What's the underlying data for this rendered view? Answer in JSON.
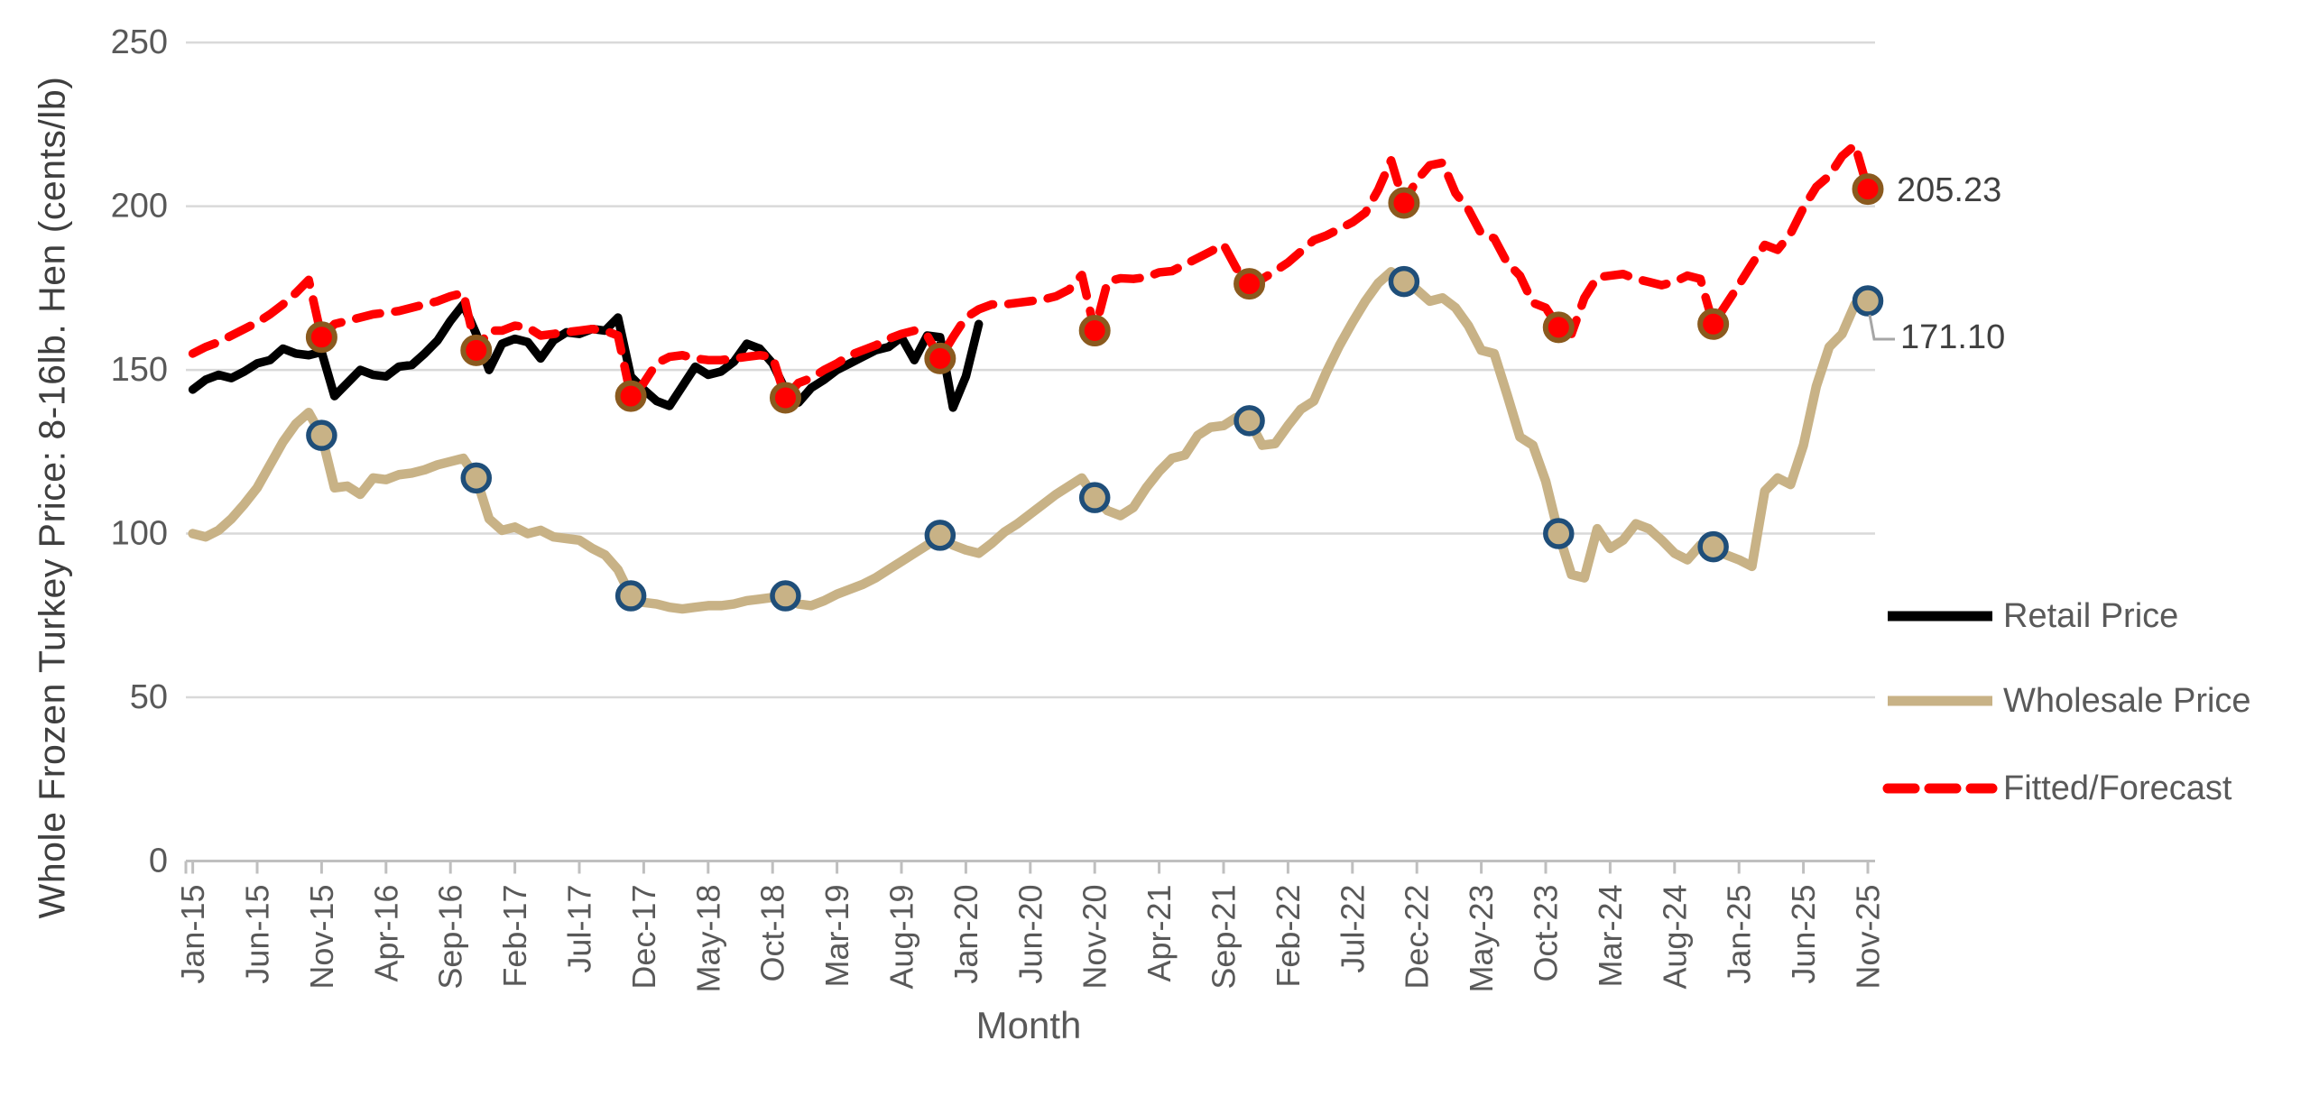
{
  "y_axis": {
    "title": "Whole Frozen Turkey Price: 8-16lb. Hen (cents/lb)",
    "ticks": [
      0,
      50,
      100,
      150,
      200,
      250
    ],
    "min": 0,
    "max": 250
  },
  "x_axis": {
    "title": "Month",
    "tick_labels": [
      "Jan-15",
      "Jun-15",
      "Nov-15",
      "Apr-16",
      "Sep-16",
      "Feb-17",
      "Jul-17",
      "Dec-17",
      "May-18",
      "Oct-18",
      "Mar-19",
      "Aug-19",
      "Jan-20",
      "Jun-20",
      "Nov-20",
      "Apr-21",
      "Sep-21",
      "Feb-22",
      "Jul-22",
      "Dec-22",
      "May-23",
      "Oct-23",
      "Mar-24",
      "Aug-24",
      "Jan-25",
      "Jun-25",
      "Nov-25"
    ],
    "months_between_ticks": 5,
    "total_points": 131
  },
  "legend": {
    "position": "right",
    "items": [
      {
        "label": "Retail Price",
        "color": "#000000",
        "style": "solid"
      },
      {
        "label": "Wholesale Price",
        "color": "#c8b286",
        "style": "solid"
      },
      {
        "label": "Fitted/Forecast",
        "color": "#ff0000",
        "style": "dashed"
      }
    ]
  },
  "annotations": [
    {
      "series": "Fitted/Forecast",
      "point": "Nov-25",
      "text": "205.23"
    },
    {
      "series": "Wholesale Price",
      "point": "Nov-25",
      "text": "171.10"
    }
  ],
  "colors": {
    "retail": "#000000",
    "wholesale": "#c8b286",
    "fitted": "#ff0000",
    "fitted_marker_ring": "#8a5a1e",
    "wholesale_marker_ring": "#1f4e79",
    "gridline": "#d9d9d9",
    "axis_line": "#bfbfbf",
    "axis_text": "#595959",
    "leader_line": "#a6a6a6"
  },
  "chart_data": {
    "type": "line",
    "title": "",
    "xlabel": "Month",
    "ylabel": "Whole Frozen Turkey Price: 8-16lb. Hen (cents/lb)",
    "x_start": "Jan-2015",
    "x_end": "Nov-2025",
    "x_frequency": "monthly",
    "ylim": [
      0,
      250
    ],
    "grid": "horizontal",
    "marker_note": "filled circle markers on every November point of Wholesale and Fitted series",
    "marker_indices": [
      10,
      22,
      34,
      46,
      58,
      70,
      82,
      94,
      106,
      118,
      130
    ],
    "series": [
      {
        "name": "Retail Price",
        "start_index": 0,
        "values": [
          144,
          147,
          148.5,
          147.5,
          149.5,
          152,
          153,
          156.5,
          155,
          154.5,
          155.5,
          142,
          146,
          150,
          148.5,
          148,
          151,
          151.5,
          155,
          159,
          165,
          170,
          161,
          150,
          158,
          159.5,
          158.5,
          153.5,
          159,
          161.5,
          161,
          162.5,
          162,
          166,
          148,
          144,
          140.5,
          139,
          145,
          151,
          148.5,
          149.5,
          152.5,
          158,
          156.5,
          152,
          143.8,
          140,
          144.5,
          147,
          150,
          152,
          154,
          156,
          157,
          160,
          153,
          160.5,
          160,
          138.5,
          148,
          164
        ]
      },
      {
        "name": "Wholesale Price",
        "start_index": 0,
        "values": [
          100,
          99,
          101,
          104.5,
          109,
          114,
          121,
          128,
          133.5,
          137,
          130,
          114,
          114.5,
          112,
          117,
          116.5,
          118,
          118.5,
          119.5,
          121,
          122,
          123,
          117,
          104.5,
          101,
          102,
          100,
          101,
          99,
          98.5,
          98,
          95.5,
          93.5,
          89,
          81,
          79,
          78.5,
          77.5,
          77,
          77.5,
          78,
          78,
          78.5,
          79.5,
          80,
          80.5,
          81,
          78.5,
          78,
          79.5,
          81.5,
          83,
          84.5,
          86.5,
          89,
          91.5,
          94,
          96.5,
          99.5,
          96.5,
          95,
          94,
          97,
          100.5,
          103,
          106,
          109,
          112,
          114.5,
          117,
          111,
          107,
          105.5,
          108,
          114,
          119,
          123,
          124,
          130,
          132.5,
          133,
          135.5,
          134.5,
          127,
          127.5,
          133,
          138,
          140.5,
          149.5,
          157.5,
          164.5,
          171,
          176.5,
          180,
          177,
          174.5,
          171,
          172,
          169,
          163.5,
          156,
          155,
          142.5,
          129.5,
          127,
          116,
          100,
          87.5,
          86.5,
          101.5,
          95.5,
          98,
          103,
          101.5,
          98,
          94,
          92,
          96.5,
          96,
          93.5,
          92,
          90,
          113,
          117,
          115,
          127,
          145,
          157,
          161,
          170,
          171.1
        ]
      },
      {
        "name": "Fitted/Forecast",
        "start_index": 0,
        "values": [
          155,
          157,
          158.5,
          160.5,
          162.5,
          164.5,
          167,
          170,
          173.5,
          177.5,
          160,
          164,
          165,
          166,
          167,
          167.5,
          168,
          169,
          170,
          171,
          172.5,
          173.5,
          156,
          162,
          162,
          163.5,
          163,
          160.5,
          161,
          161.5,
          162,
          162.5,
          162,
          160.5,
          142,
          146,
          152,
          154,
          154.5,
          153.5,
          153,
          153,
          153.5,
          154,
          154.5,
          154,
          141.5,
          146,
          147.5,
          150,
          152,
          154.5,
          156,
          157.5,
          159.5,
          161,
          162,
          160.5,
          153.5,
          160,
          166,
          168.5,
          170,
          170,
          170.5,
          171,
          171.5,
          172.5,
          174.5,
          179,
          162,
          177,
          178,
          177.8,
          178.3,
          179.8,
          180.2,
          182.2,
          184.2,
          186.2,
          188.3,
          181,
          176.3,
          177.8,
          180.2,
          182.8,
          186.2,
          189.6,
          191.1,
          193.1,
          195.1,
          198,
          205,
          214,
          201,
          208,
          212.5,
          213.3,
          204,
          199,
          191.6,
          190.2,
          182.8,
          178.8,
          170.5,
          169,
          163,
          161,
          172,
          178.3,
          178.8,
          179.3,
          177.8,
          176.9,
          175.9,
          176.9,
          178.8,
          177.8,
          164,
          170,
          176,
          182.3,
          188.2,
          186.7,
          191.6,
          199.5,
          205.9,
          209.3,
          215.3,
          218.7,
          205.23
        ]
      }
    ]
  }
}
